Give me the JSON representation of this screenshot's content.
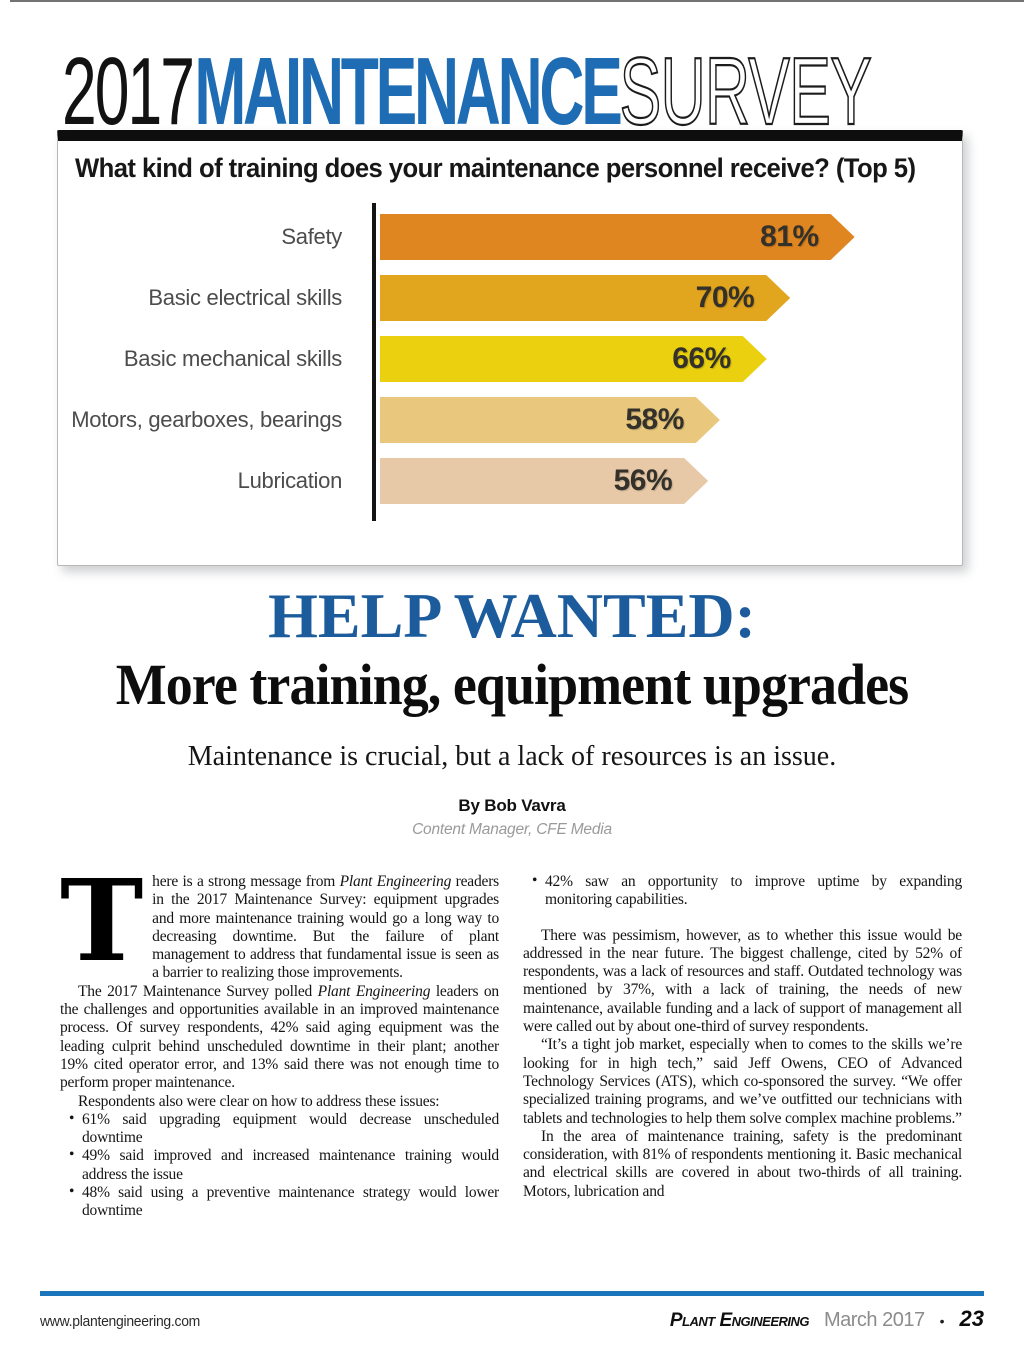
{
  "masthead": {
    "part_year": "2017",
    "part_main": "MAINTENANCE",
    "part_survey": "SURVEY",
    "accent_blue": "#1E6CB3"
  },
  "chart_data": {
    "type": "bar",
    "orientation": "horizontal",
    "title": "What kind of training does your maintenance personnel receive? (Top 5)",
    "categories": [
      "Safety",
      "Basic electrical skills",
      "Basic mechanical skills",
      "Motors, gearboxes, bearings",
      "Lubrication"
    ],
    "values": [
      81,
      70,
      66,
      58,
      56
    ],
    "value_labels": [
      "81%",
      "70%",
      "66%",
      "58%",
      "56%"
    ],
    "bar_colors": [
      "#E08620",
      "#E2A51E",
      "#EAD00E",
      "#E9C87E",
      "#E7C9A7"
    ],
    "xlim": [
      0,
      100
    ],
    "grid": false,
    "legend": false
  },
  "headline": {
    "kicker": "HELP WANTED:",
    "kicker_color": "#1C5C9C",
    "title": "More training, equipment upgrades",
    "subtitle": "Maintenance is crucial, but a lack of  resources is an issue.",
    "byline": "By Bob Vavra",
    "byline_role": "Content Manager, CFE Media"
  },
  "article": {
    "bullet_char": "•",
    "columns": [
      {
        "name": "left",
        "paragraphs": [
          {
            "type": "dropcap",
            "dropcap": "T",
            "segments": [
              {
                "text": "here is a strong message from "
              },
              {
                "text": "Plant Engineering",
                "italic": true
              },
              {
                "text": " readers in the 2017 Maintenance Survey: equipment upgrades and more maintenance training would go a long way to decreasing downtime. But the failure of plant management to address that fundamental issue is seen as a barrier to realizing those improvements."
              }
            ]
          },
          {
            "type": "indent",
            "segments": [
              {
                "text": "The 2017 Maintenance Survey polled "
              },
              {
                "text": "Plant Engineering",
                "italic": true
              },
              {
                "text": " leaders on the challenges and opportunities available in an improved maintenance process. Of survey respondents, 42% said aging equipment was the leading culprit behind unscheduled downtime in their plant; another 19% cited operator error, and 13% said there was not enough time to perform proper maintenance."
              }
            ]
          },
          {
            "type": "indent",
            "segments": [
              {
                "text": "Respondents also were clear on how to address these issues:"
              }
            ]
          },
          {
            "type": "bullet",
            "segments": [
              {
                "text": "61% said upgrading equipment would decrease unscheduled downtime"
              }
            ]
          },
          {
            "type": "bullet",
            "segments": [
              {
                "text": "49% said improved and increased maintenance training would address the issue"
              }
            ]
          },
          {
            "type": "bullet",
            "segments": [
              {
                "text": "48% said using a preventive maintenance strategy would lower downtime"
              }
            ]
          }
        ]
      },
      {
        "name": "right",
        "paragraphs": [
          {
            "type": "bullet",
            "segments": [
              {
                "text": "42% saw an opportunity to improve uptime by expanding monitoring capabilities."
              }
            ]
          },
          {
            "type": "indent",
            "space_before": true,
            "segments": [
              {
                "text": "There was pessimism, however, as to whether this issue would be addressed in the near future. The biggest challenge, cited by 52% of respondents, was a lack of resources and staff. Outdated technology was mentioned by 37%, with a lack of training, the needs of new maintenance, available funding and a lack of support of management all were called out by about one-third of survey respondents."
              }
            ]
          },
          {
            "type": "indent",
            "segments": [
              {
                "text": "“It’s a tight job market, especially when to comes to the skills we’re looking for in high tech,” said Jeff Owens, CEO of Advanced Technology Services (ATS), which co-sponsored the survey. “We offer specialized training programs, and we’ve outfitted our technicians with tablets and technologies to help them solve complex machine problems.”"
              }
            ]
          },
          {
            "type": "indent",
            "segments": [
              {
                "text": "In the area of maintenance training, safety is the predominant consideration, with 81% of respondents mentioning it. Basic mechanical and electrical skills are covered in about two-thirds of all training. Motors, lubrication and"
              }
            ]
          }
        ]
      }
    ]
  },
  "footer": {
    "website": "www.plantengineering.com",
    "magazine": "Plant Engineering",
    "issue": "March 2017",
    "separator": "•",
    "page_number": "23",
    "rule_color": "#1B75BB"
  }
}
